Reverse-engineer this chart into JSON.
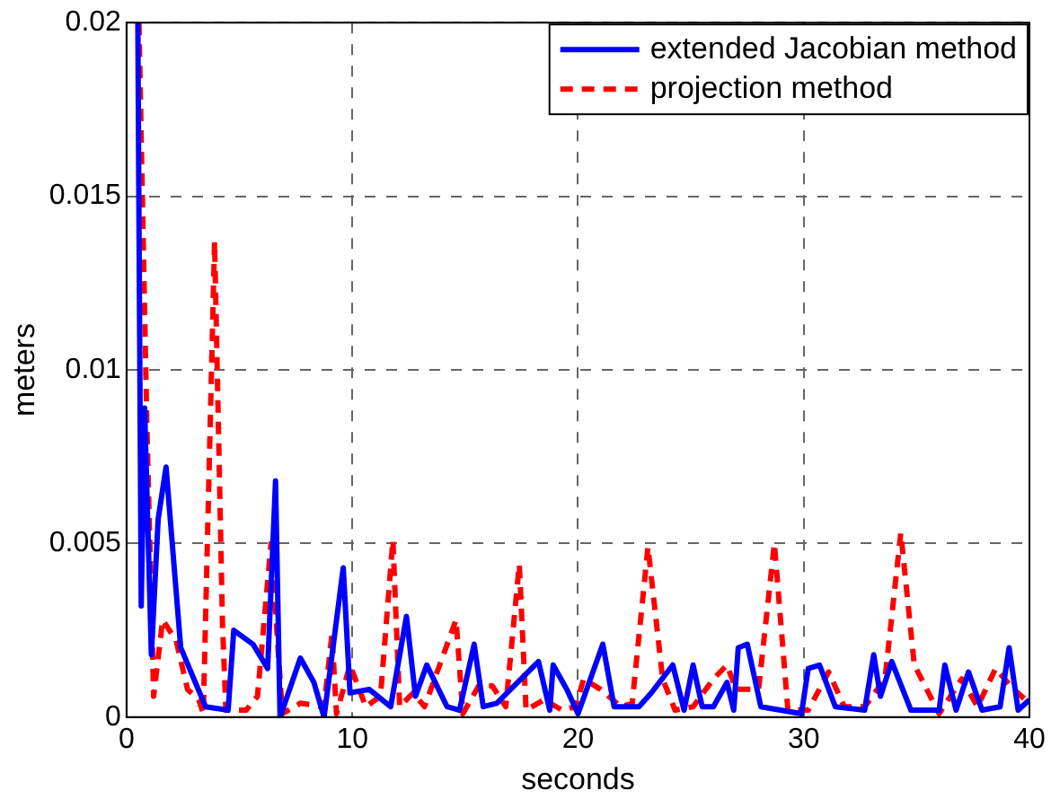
{
  "chart_data": {
    "type": "line",
    "xlabel": "seconds",
    "ylabel": "meters",
    "xlim": [
      0,
      40
    ],
    "xticks": [
      0,
      10,
      20,
      30,
      40
    ],
    "ylim": [
      0,
      0.02
    ],
    "yticks": [
      0,
      0.005,
      0.01,
      0.015,
      0.02
    ],
    "grid": true,
    "legend": "top right",
    "marker": "none",
    "series": [
      {
        "name": "extended Jacobian method",
        "color": "#0000ff",
        "line_style": "solid",
        "x": [
          0.4,
          0.5,
          0.65,
          0.8,
          1.1,
          1.4,
          1.75,
          2.4,
          3.5,
          4.5,
          4.75,
          5.6,
          6.25,
          6.6,
          6.8,
          7.7,
          8.3,
          8.75,
          9.6,
          9.9,
          10.75,
          11.7,
          12.4,
          12.8,
          13.3,
          14.2,
          14.75,
          15.4,
          15.8,
          16.4,
          18.25,
          18.75,
          18.9,
          19.5,
          20,
          21.1,
          21.6,
          22.7,
          23.25,
          24.2,
          24.7,
          25.1,
          25.5,
          26,
          26.6,
          26.9,
          27.1,
          27.5,
          28.1,
          29.9,
          30.2,
          30.7,
          31.4,
          32.7,
          33.1,
          33.4,
          33.9,
          34.75,
          36,
          36.25,
          36.75,
          37.3,
          37.9,
          38.7,
          39.1,
          39.5,
          40
        ],
        "values": [
          0.02,
          0.02,
          0.0032,
          0.0089,
          0.0018,
          0.0057,
          0.0072,
          0.002,
          0.0003,
          0.0002,
          0.0025,
          0.0021,
          0.0014,
          0.0068,
          0,
          0.0017,
          0.001,
          0,
          0.0043,
          0.0007,
          0.0008,
          0.0003,
          0.0029,
          0.0006,
          0.0015,
          0.0003,
          0.0002,
          0.0021,
          0.0003,
          0.0004,
          0.0016,
          0.0002,
          0.0015,
          0.0008,
          0.0001,
          0.0021,
          0.0003,
          0.0003,
          0.0007,
          0.0015,
          0.0002,
          0.0015,
          0.0003,
          0.0003,
          0.001,
          0.0002,
          0.002,
          0.0021,
          0.0003,
          0.0001,
          0.0014,
          0.0015,
          0.0003,
          0.0002,
          0.0018,
          0.0006,
          0.0016,
          0.0002,
          0.0002,
          0.0015,
          0.0002,
          0.0013,
          0.0002,
          0.0003,
          0.002,
          0.0002,
          0.0005
        ]
      },
      {
        "name": "projection method",
        "color": "#ff0000",
        "line_style": "dashed",
        "x": [
          0.55,
          0.9,
          1.2,
          1.6,
          2.2,
          2.7,
          3.2,
          3.4,
          3.9,
          4.25,
          4.4,
          5.3,
          5.8,
          6.4,
          6.75,
          6.9,
          7.7,
          8.75,
          9.1,
          9.3,
          9.9,
          10.6,
          11.25,
          11.8,
          12.1,
          12.7,
          13.2,
          14.6,
          14.9,
          15.6,
          16.2,
          16.8,
          17.4,
          17.7,
          18.5,
          19.3,
          19.9,
          20.25,
          21,
          21.9,
          22.4,
          23.1,
          23.75,
          24.3,
          25.1,
          26,
          26.6,
          27,
          28,
          28.7,
          29.3,
          30.2,
          31.1,
          31.8,
          32.7,
          33.6,
          34.3,
          34.9,
          36,
          37,
          37.7,
          38.5,
          39.3,
          40
        ],
        "values": [
          0.02,
          0.0084,
          0.0006,
          0.0028,
          0.0022,
          0.0008,
          0.0005,
          0.0001,
          0.0137,
          0.0027,
          0.0002,
          0.0002,
          0.0006,
          0.005,
          0.0016,
          0.0001,
          0.0004,
          0.0003,
          0.0024,
          0.0001,
          0.0015,
          0.0003,
          0.0006,
          0.0051,
          0.0003,
          0.0007,
          0.0003,
          0.0028,
          0.0001,
          0.0009,
          0.0009,
          0.0003,
          0.0044,
          0.0002,
          0.0005,
          0.0002,
          0.0003,
          0.0011,
          0.0008,
          0.0003,
          0.0004,
          0.0049,
          0.0011,
          0.0002,
          0.0003,
          0.0011,
          0.0015,
          0.0008,
          0.0008,
          0.005,
          0.0002,
          0.0002,
          0.0013,
          0.0003,
          0.0003,
          0.0011,
          0.0053,
          0.0015,
          0.0001,
          0.0011,
          0.0003,
          0.0014,
          0.0008,
          0.0004
        ]
      }
    ]
  }
}
